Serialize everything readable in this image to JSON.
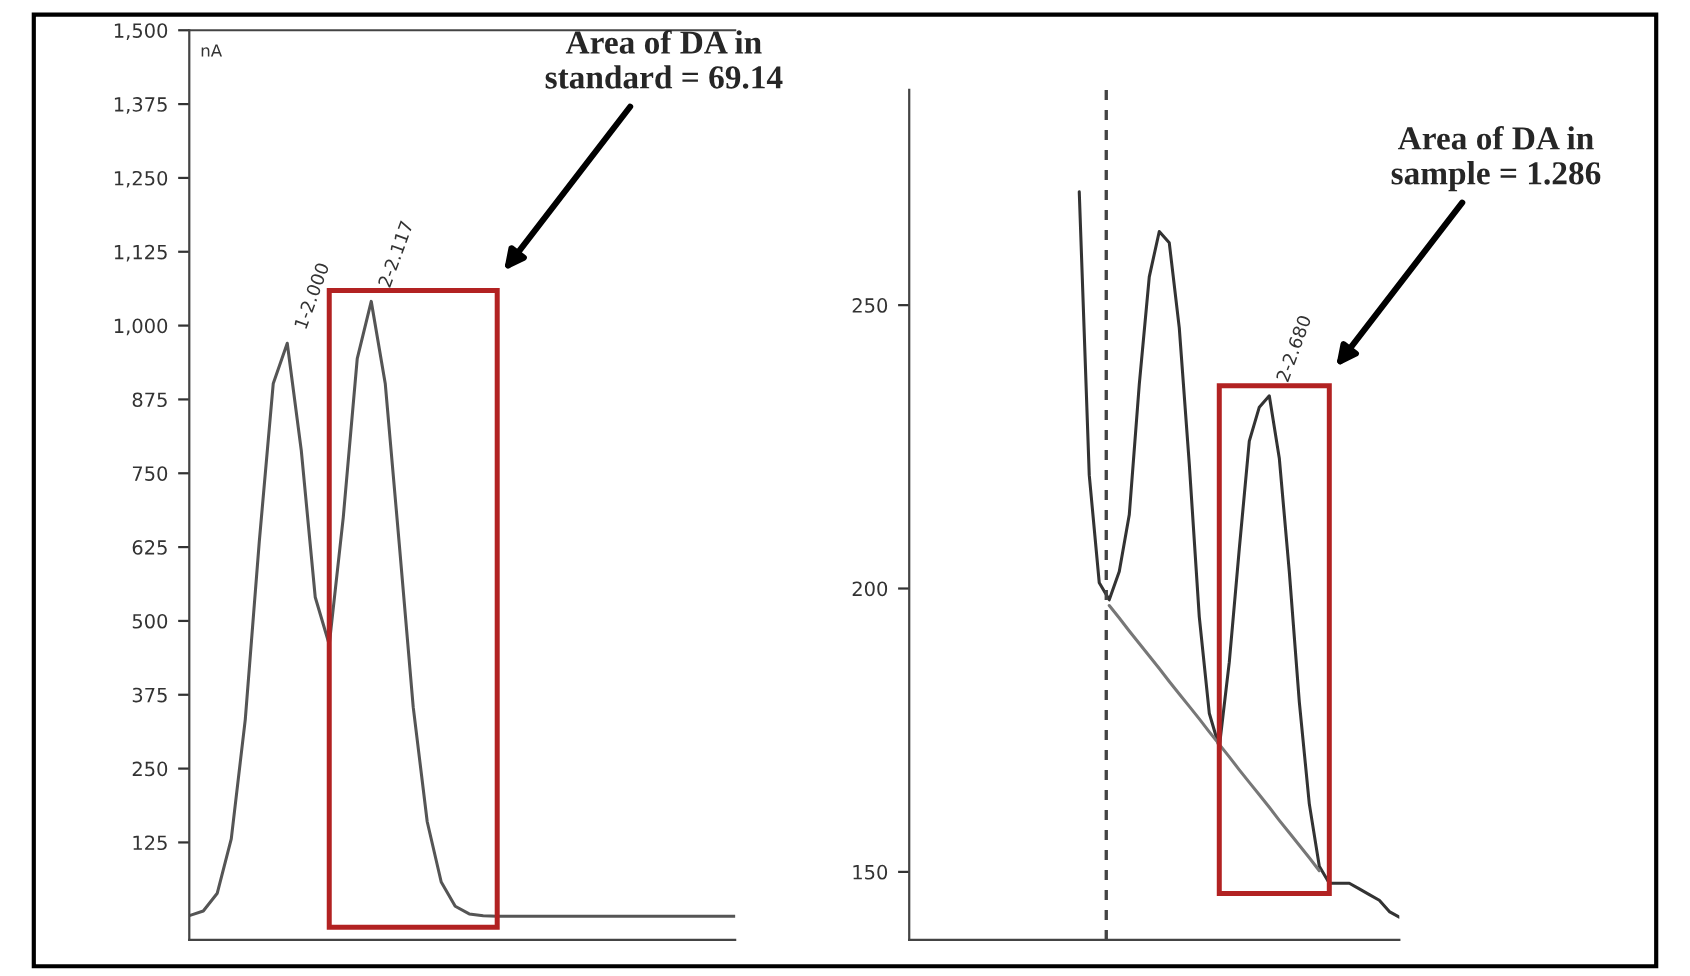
{
  "chart_data": [
    {
      "type": "line",
      "ylabel": "nA",
      "categories": [
        null,
        null,
        null,
        null,
        null,
        null,
        null,
        null,
        null,
        null,
        null,
        null,
        null,
        null,
        null,
        null,
        null,
        null,
        null,
        null,
        null,
        null,
        null,
        null,
        null,
        null,
        null,
        null,
        null,
        null,
        null,
        null,
        null,
        null,
        null,
        null,
        null,
        null,
        null,
        null
      ],
      "series": [
        {
          "color": "#555555",
          "values": [
            1,
            9,
            39,
            131,
            333,
            634,
            902,
            970,
            789,
            540,
            460,
            675,
            944,
            1041,
            902,
            631,
            354,
            160,
            58,
            17,
            4,
            1,
            0,
            0,
            0,
            0,
            0,
            0,
            0,
            0,
            0,
            0,
            0,
            0,
            0,
            0,
            0,
            0,
            0,
            0
          ]
        }
      ],
      "ylim": [
        -40,
        1500
      ],
      "yticks": [
        {
          "value": 125,
          "label": "125"
        },
        {
          "value": 250,
          "label": "250"
        },
        {
          "value": 375,
          "label": "375"
        },
        {
          "value": 500,
          "label": "500"
        },
        {
          "value": 625,
          "label": "625"
        },
        {
          "value": 750,
          "label": "750"
        },
        {
          "value": 875,
          "label": "875"
        },
        {
          "value": 1000,
          "label": "1,000"
        },
        {
          "value": 1125,
          "label": "1,125"
        },
        {
          "value": 1250,
          "label": "1,250"
        },
        {
          "value": 1375,
          "label": "1,375"
        },
        {
          "value": 1500,
          "label": "1,500"
        }
      ],
      "annotations": [
        "1-2.000",
        "2-2.117",
        "Area of DA in\nstandard = 69.14"
      ]
    },
    {
      "type": "line",
      "categories": [
        null,
        null,
        null,
        null,
        null,
        null,
        null,
        null,
        null,
        null,
        null,
        null,
        null,
        null,
        null,
        null,
        null,
        null,
        null,
        null,
        null,
        null,
        null,
        null,
        null,
        null,
        null,
        null,
        null,
        null,
        null,
        null,
        null,
        null,
        null,
        null,
        null,
        null,
        null,
        null,
        null,
        null,
        null,
        null,
        null,
        null,
        null,
        null,
        null,
        null
      ],
      "series": [
        {
          "color": "#333333",
          "values": [
            null,
            null,
            null,
            null,
            null,
            null,
            null,
            null,
            null,
            null,
            null,
            null,
            null,
            null,
            null,
            null,
            null,
            270,
            220,
            201,
            198,
            203,
            213,
            236,
            255,
            263,
            261,
            246,
            222,
            195,
            178,
            172,
            187,
            207,
            226,
            232,
            234,
            223,
            203,
            180,
            162,
            151,
            148,
            148,
            148,
            147,
            146,
            145,
            143,
            142
          ]
        },
        {
          "color": "#777777",
          "values": [
            null,
            null,
            null,
            null,
            null,
            null,
            null,
            null,
            null,
            null,
            null,
            null,
            null,
            null,
            null,
            null,
            null,
            null,
            null,
            null,
            197,
            194.8,
            192.5,
            190.3,
            188.1,
            185.9,
            183.6,
            181.4,
            179.2,
            177,
            174.7,
            172.5,
            170.3,
            168,
            165.8,
            163.6,
            161.4,
            159.1,
            156.9,
            154.7,
            152.5,
            150.2,
            null,
            null,
            null,
            null,
            null,
            null,
            null,
            null
          ]
        }
      ],
      "ylim": [
        138,
        288
      ],
      "yticks": [
        150,
        200,
        250
      ],
      "annotations": [
        "2-2.680",
        "Area of DA in\nsample = 1.286"
      ]
    }
  ]
}
